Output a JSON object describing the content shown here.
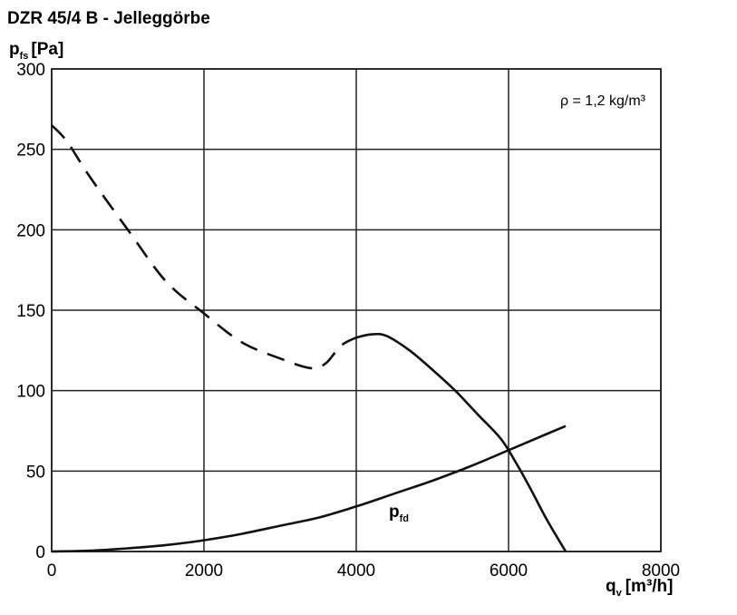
{
  "title": "DZR 45/4 B - Jelleggörbe",
  "chart_data": {
    "type": "line",
    "title": "DZR 45/4 B - Jelleggörbe",
    "ylabel": {
      "main": "p",
      "sub": "fs",
      "unit": "[Pa]"
    },
    "xlabel": {
      "main": "q",
      "sub": "v",
      "unit": "[m³/h]"
    },
    "xlim": [
      0,
      8000
    ],
    "ylim": [
      0,
      300
    ],
    "x_ticks": [
      "0",
      "2000",
      "4000",
      "6000",
      "8000"
    ],
    "y_ticks": [
      "0",
      "50",
      "100",
      "150",
      "200",
      "250",
      "300"
    ],
    "grid": true,
    "annotation": "ρ = 1,2 kg/m³",
    "series": [
      {
        "style": "dashed",
        "x": [
          0,
          200,
          500,
          1000,
          1500,
          2000,
          2500,
          3000,
          3400,
          3600,
          3800,
          4000
        ],
        "y": [
          265,
          255,
          233,
          200,
          168,
          148,
          130,
          120,
          114,
          117,
          128,
          133
        ]
      },
      {
        "style": "solid",
        "x": [
          4000,
          4200,
          4400,
          4700,
          5000,
          5300,
          5600,
          5900,
          6100,
          6300,
          6500,
          6750
        ],
        "y": [
          133,
          135,
          134,
          125,
          113,
          100,
          85,
          70,
          55,
          38,
          20,
          0
        ]
      },
      {
        "name": "pfd",
        "label_main": "p",
        "label_sub": "fd",
        "style": "solid",
        "x": [
          0,
          500,
          1000,
          1500,
          2000,
          2500,
          3000,
          3500,
          4000,
          4500,
          5000,
          5500,
          6000,
          6500,
          6750
        ],
        "y": [
          0,
          0.5,
          2,
          4,
          7,
          11,
          16,
          21,
          28,
          36,
          44,
          53,
          63,
          73,
          78
        ]
      }
    ]
  }
}
